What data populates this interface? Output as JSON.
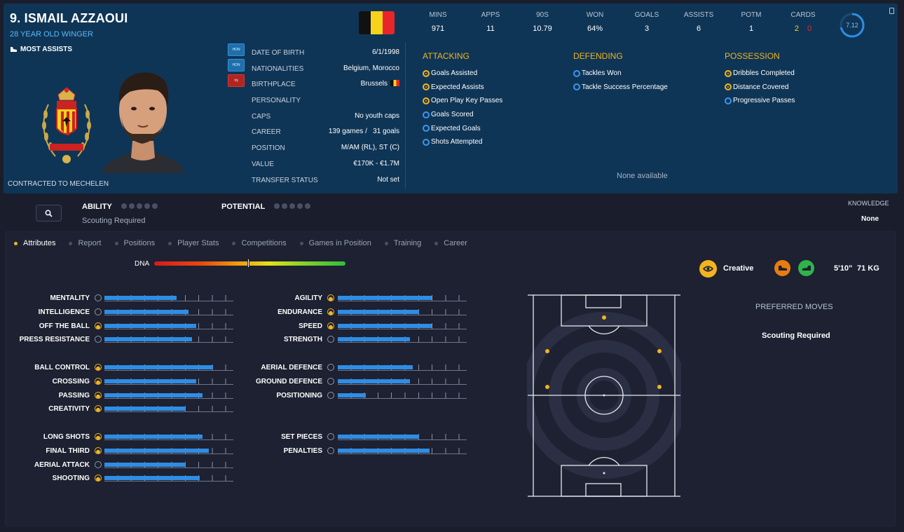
{
  "header": {
    "name": "9. ISMAIL AZZAOUI",
    "subtitle": "28 YEAR OLD WINGER",
    "badge_text": "MOST ASSISTS",
    "contract": "CONTRACTED TO MECHELEN",
    "status_chips": [
      "HON",
      "HON",
      "Inj"
    ]
  },
  "info": [
    {
      "label": "DATE OF BIRTH",
      "value": "6/1/1998"
    },
    {
      "label": "NATIONALITIES",
      "value": "Belgium, Morocco"
    },
    {
      "label": "BIRTHPLACE",
      "value": "Brussels"
    },
    {
      "label": "PERSONALITY",
      "value": ""
    },
    {
      "label": "CAPS",
      "value": "No youth caps"
    },
    {
      "label": "CAREER",
      "value": "139 games /   31 goals"
    },
    {
      "label": "POSITION",
      "value": "M/AM (RL), ST (C)"
    },
    {
      "label": "VALUE",
      "value": "€170K - €1.7M"
    },
    {
      "label": "TRANSFER STATUS",
      "value": "Not set"
    }
  ],
  "flag_colors": [
    "#111111",
    "#f5d31c",
    "#e8262a"
  ],
  "stats": [
    {
      "h": "MINS",
      "v": "971"
    },
    {
      "h": "APPS",
      "v": "11"
    },
    {
      "h": "90S",
      "v": "10.79"
    },
    {
      "h": "WON",
      "v": "64%"
    },
    {
      "h": "GOALS",
      "v": "3"
    },
    {
      "h": "ASSISTS",
      "v": "6"
    },
    {
      "h": "POTM",
      "v": "1"
    }
  ],
  "cards": {
    "h": "CARDS",
    "yellow": "2",
    "red": "0"
  },
  "rating": "7.12",
  "groups": [
    {
      "title": "ATTACKING",
      "items": [
        {
          "label": "Goals Assisted",
          "style": "gold"
        },
        {
          "label": "Expected Assists",
          "style": "gold"
        },
        {
          "label": "Open Play Key Passes",
          "style": "gold"
        },
        {
          "label": "Goals Scored",
          "style": "blue"
        },
        {
          "label": "Expected Goals",
          "style": "blue"
        },
        {
          "label": "Shots Attempted",
          "style": "blue"
        }
      ]
    },
    {
      "title": "DEFENDING",
      "items": [
        {
          "label": "Tackles Won",
          "style": "blue"
        },
        {
          "label": "Tackle Success Percentage",
          "style": "blue"
        }
      ]
    },
    {
      "title": "POSSESSION",
      "items": [
        {
          "label": "Dribbles Completed",
          "style": "gold"
        },
        {
          "label": "Distance Covered",
          "style": "gold"
        },
        {
          "label": "Progressive Passes",
          "style": "blue"
        }
      ]
    }
  ],
  "none_available": "None available",
  "scouting": {
    "ability_label": "ABILITY",
    "potential_label": "POTENTIAL",
    "scouting_required": "Scouting Required",
    "knowledge_label": "KNOWLEDGE",
    "knowledge_value": "None"
  },
  "tabs": [
    "Attributes",
    "Report",
    "Positions",
    "Player Stats",
    "Competitions",
    "Games in Position",
    "Training",
    "Career"
  ],
  "dna": {
    "label": "DNA",
    "level": 0.49
  },
  "attributes_left": [
    {
      "name": "MENTALITY",
      "value": 0.56,
      "gold": false
    },
    {
      "name": "INTELLIGENCE",
      "value": 0.65,
      "gold": false
    },
    {
      "name": "OFF THE BALL",
      "value": 0.71,
      "gold": true
    },
    {
      "name": "PRESS RESISTANCE",
      "value": 0.68,
      "gold": false
    },
    null,
    {
      "name": "BALL CONTROL",
      "value": 0.84,
      "gold": true
    },
    {
      "name": "CROSSING",
      "value": 0.71,
      "gold": true
    },
    {
      "name": "PASSING",
      "value": 0.76,
      "gold": true
    },
    {
      "name": "CREATIVITY",
      "value": 0.63,
      "gold": true
    },
    null,
    {
      "name": "LONG SHOTS",
      "value": 0.76,
      "gold": true
    },
    {
      "name": "FINAL THIRD",
      "value": 0.81,
      "gold": true
    },
    {
      "name": "AERIAL ATTACK",
      "value": 0.63,
      "gold": false
    },
    {
      "name": "SHOOTING",
      "value": 0.74,
      "gold": true
    }
  ],
  "attributes_right": [
    {
      "name": "AGILITY",
      "value": 0.73,
      "gold": true
    },
    {
      "name": "ENDURANCE",
      "value": 0.63,
      "gold": true
    },
    {
      "name": "SPEED",
      "value": 0.73,
      "gold": true
    },
    {
      "name": "STRENGTH",
      "value": 0.56,
      "gold": false
    },
    null,
    {
      "name": "AERIAL DEFENCE",
      "value": 0.58,
      "gold": false
    },
    {
      "name": "GROUND DEFENCE",
      "value": 0.56,
      "gold": false
    },
    {
      "name": "POSITIONING",
      "value": 0.22,
      "gold": false
    },
    null,
    null,
    {
      "name": "SET PIECES",
      "value": 0.63,
      "gold": false
    },
    {
      "name": "PENALTIES",
      "value": 0.71,
      "gold": false
    }
  ],
  "playstyle": "Creative",
  "height": "5'10\"",
  "weight": "71 KG",
  "preferred_moves": {
    "title": "PREFERRED MOVES",
    "value": "Scouting Required"
  },
  "colors": {
    "accent": "#f2b41e",
    "bar": "#2f8de4",
    "header_bg": "#0f3556",
    "page_bg": "#1a1d2b"
  }
}
